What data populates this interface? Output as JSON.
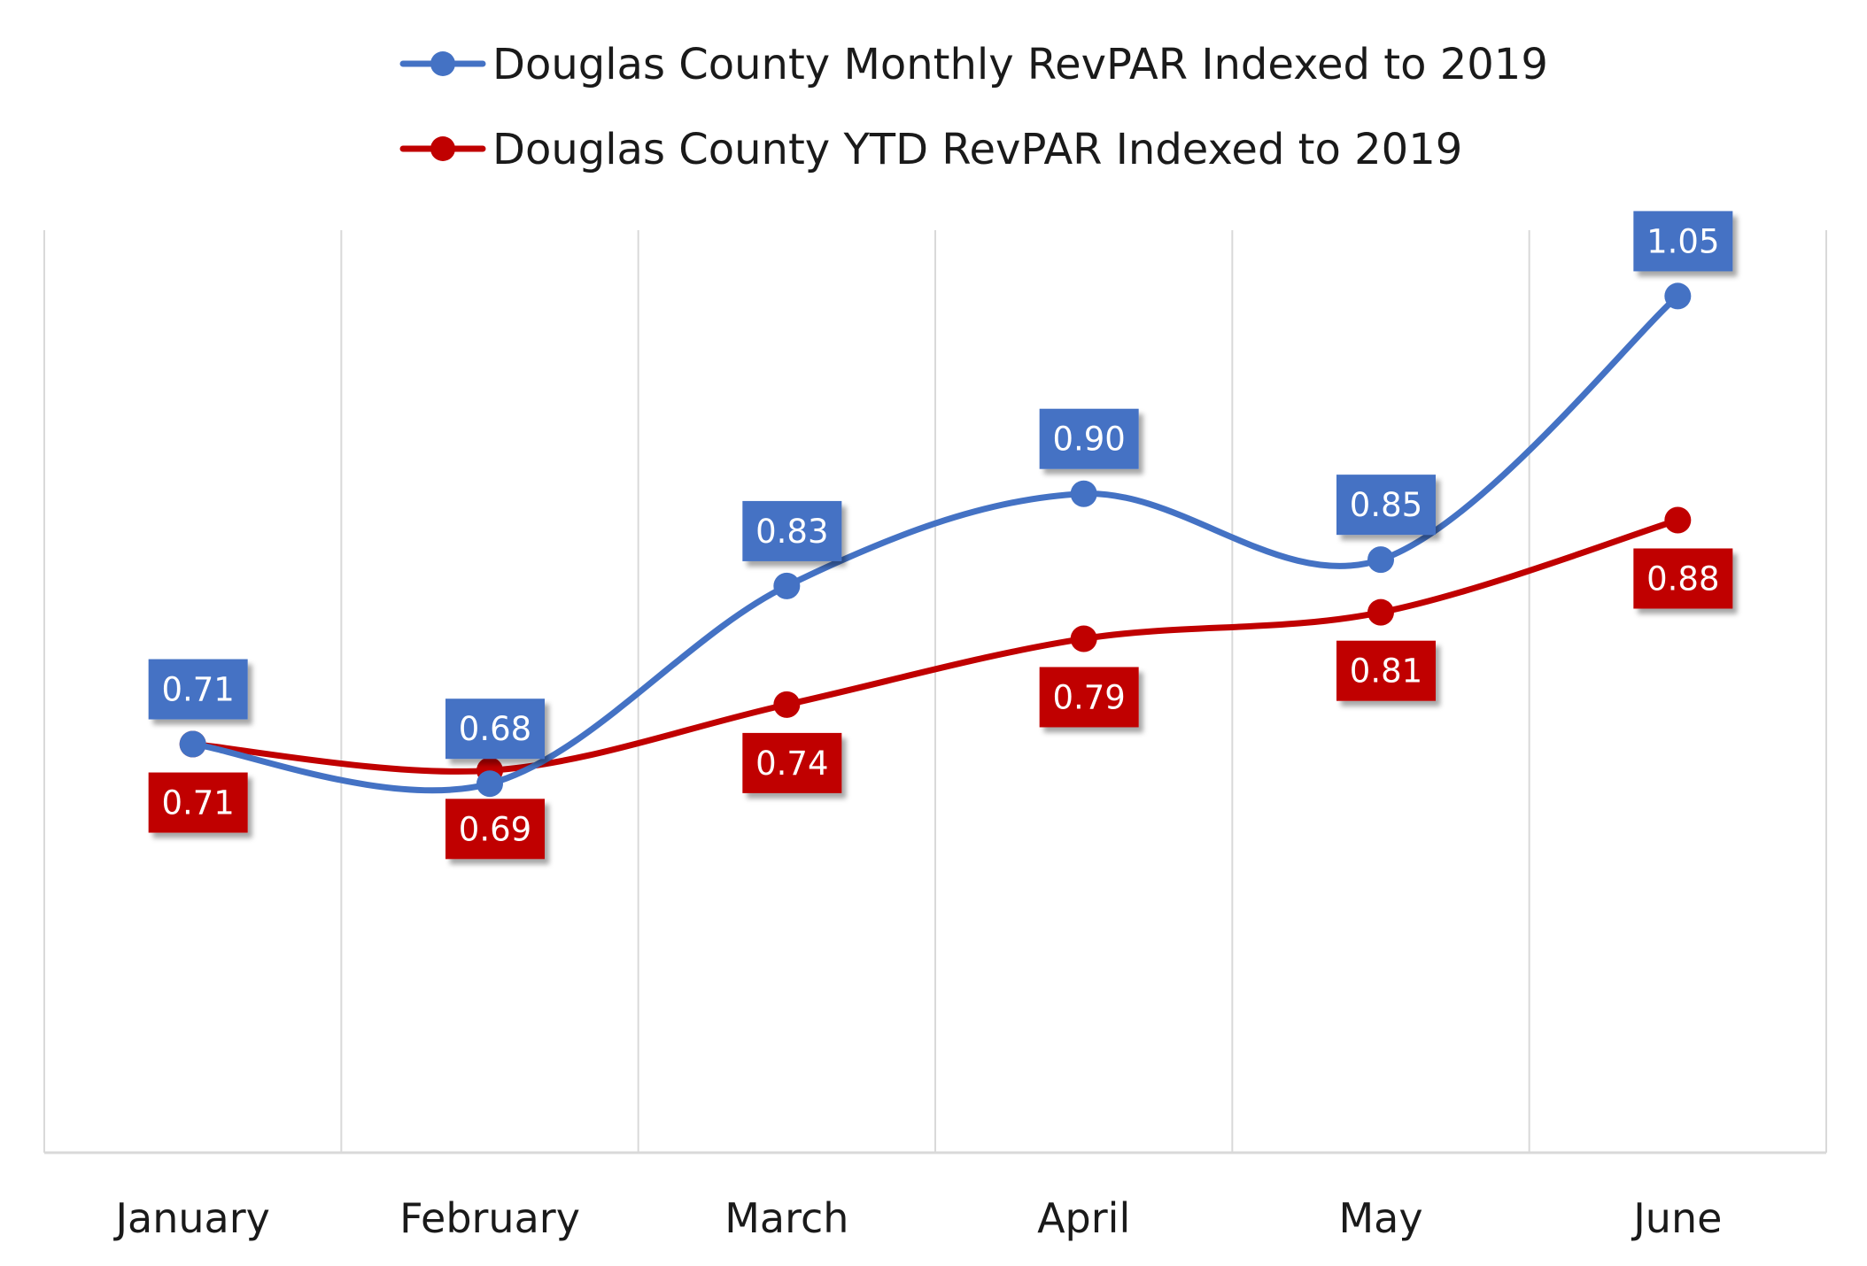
{
  "chart_data": {
    "type": "line",
    "title": "",
    "xlabel": "",
    "ylabel": "",
    "categories": [
      "January",
      "February",
      "March",
      "April",
      "May",
      "June"
    ],
    "ylim": [
      0.4,
      1.1
    ],
    "grid": "vertical lines between categories",
    "legend_position": "top",
    "smooth": true,
    "series": [
      {
        "name": "Douglas County Monthly RevPAR Indexed to 2019",
        "color": "#4472C4",
        "values": [
          0.71,
          0.68,
          0.83,
          0.9,
          0.85,
          1.05
        ],
        "labels": [
          "0.71",
          "0.68",
          "0.83",
          "0.90",
          "0.85",
          "1.05"
        ],
        "label_position": "above"
      },
      {
        "name": "Douglas County YTD RevPAR Indexed to 2019",
        "color": "#C00000",
        "values": [
          0.71,
          0.69,
          0.74,
          0.79,
          0.81,
          0.88
        ],
        "labels": [
          "0.71",
          "0.69",
          "0.74",
          "0.79",
          "0.81",
          "0.88"
        ],
        "label_position": "below"
      }
    ]
  }
}
